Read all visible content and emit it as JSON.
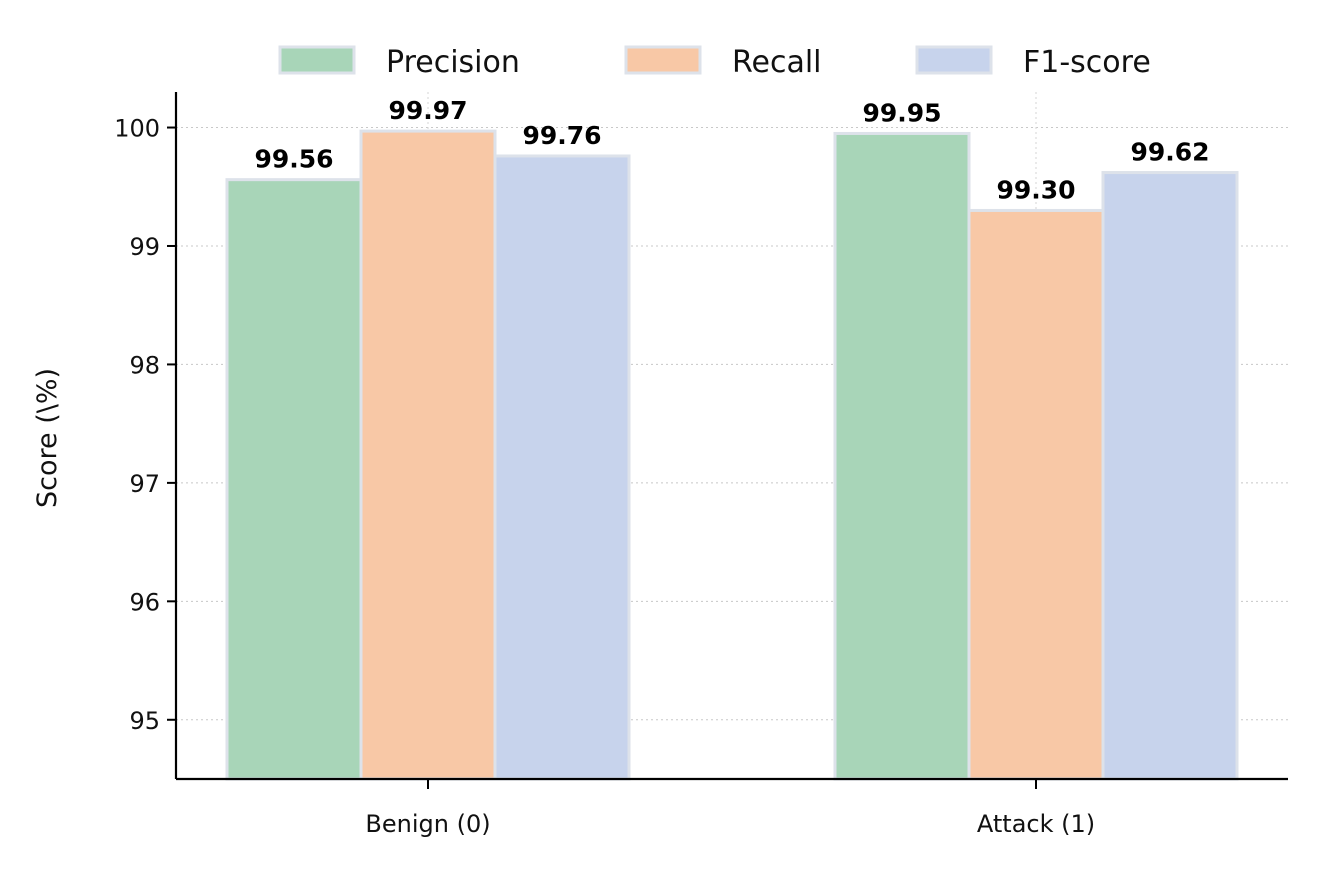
{
  "chart_data": {
    "type": "bar",
    "categories": [
      "Benign (0)",
      "Attack (1)"
    ],
    "series": [
      {
        "name": "Precision",
        "values": [
          99.56,
          99.95
        ],
        "labels": [
          "99.56",
          "99.95"
        ],
        "color": "#a8d5b8"
      },
      {
        "name": "Recall",
        "values": [
          99.97,
          99.3
        ],
        "labels": [
          "99.97",
          "99.30"
        ],
        "color": "#f8c8a6"
      },
      {
        "name": "F1-score",
        "values": [
          99.76,
          99.62
        ],
        "labels": [
          "99.76",
          "99.62"
        ],
        "color": "#c7d3ec"
      }
    ],
    "title": "",
    "xlabel": "",
    "ylabel": "Score (\\%)",
    "ylim": [
      94.5,
      100.3
    ],
    "yticks": [
      "95",
      "96",
      "97",
      "98",
      "99",
      "100"
    ],
    "grid": true,
    "legend_position": "top-center",
    "bar_edge_color": "#dde2ea"
  }
}
